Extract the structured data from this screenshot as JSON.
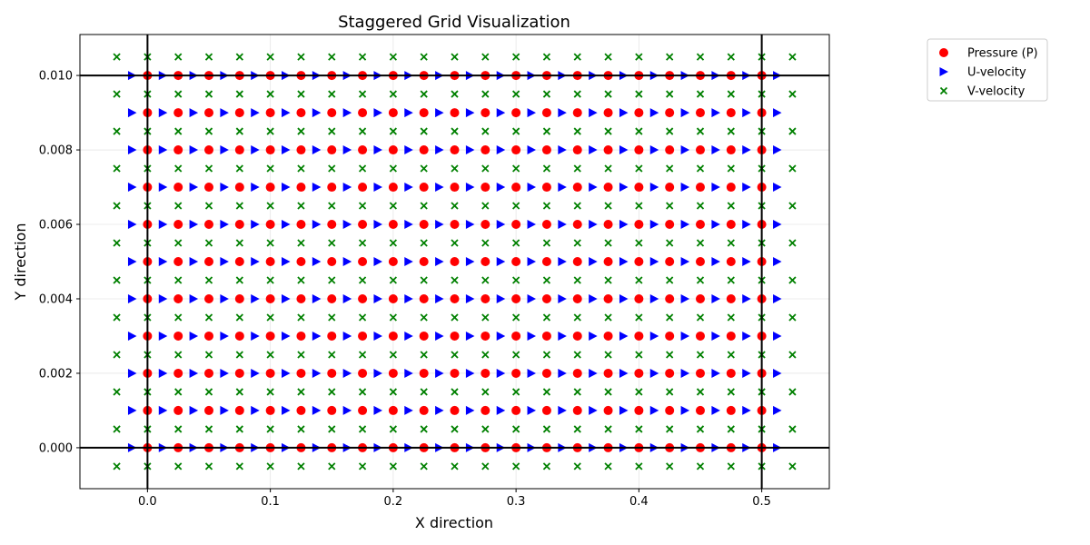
{
  "chart_data": {
    "type": "scatter",
    "title": "Staggered Grid Visualization",
    "xlabel": "X direction",
    "ylabel": "Y direction",
    "xlim": [
      -0.055,
      0.555
    ],
    "ylim": [
      -0.0011,
      0.0111
    ],
    "x_ticks": [
      0.0,
      0.1,
      0.2,
      0.3,
      0.4,
      0.5
    ],
    "x_tick_labels": [
      "0.0",
      "0.1",
      "0.2",
      "0.3",
      "0.4",
      "0.5"
    ],
    "y_ticks": [
      0.0,
      0.002,
      0.004,
      0.006,
      0.008,
      0.01
    ],
    "y_tick_labels": [
      "0.000",
      "0.002",
      "0.004",
      "0.006",
      "0.008",
      "0.010"
    ],
    "grid": true,
    "legend_position": "outside top-right",
    "boundary_lines": {
      "x": [
        0.0,
        0.5
      ],
      "y": [
        0.0,
        0.01
      ],
      "color": "#000000"
    },
    "series": [
      {
        "name": "Pressure (P)",
        "marker": "circle",
        "color": "#ff0000",
        "x_values": {
          "start": 0.0,
          "stop": 0.5,
          "step": 0.025
        },
        "y_values": {
          "start": 0.0,
          "stop": 0.01,
          "step": 0.001
        }
      },
      {
        "name": "U-velocity",
        "marker": "triangle-right",
        "color": "#0000ff",
        "x_values": {
          "start": -0.0125,
          "stop": 0.5125,
          "step": 0.025
        },
        "y_values": {
          "start": 0.0,
          "stop": 0.01,
          "step": 0.001
        }
      },
      {
        "name": "V-velocity",
        "marker": "x",
        "color": "#008000",
        "x_values": {
          "start": -0.025,
          "stop": 0.525,
          "step": 0.025
        },
        "y_values": {
          "start": -0.0005,
          "stop": 0.0105,
          "step": 0.001
        }
      }
    ]
  }
}
